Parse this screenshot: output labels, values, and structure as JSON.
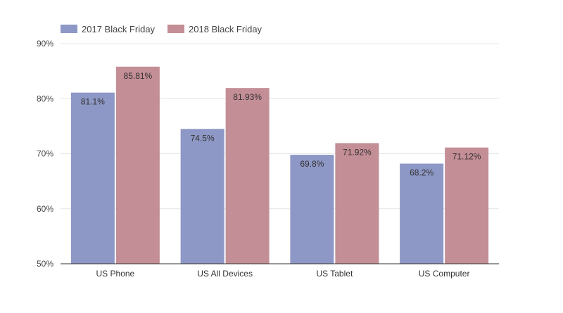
{
  "chart_data": {
    "type": "bar",
    "title": "",
    "xlabel": "",
    "ylabel": "",
    "categories": [
      "US Phone",
      "US All Devices",
      "US Tablet",
      "US Computer"
    ],
    "series": [
      {
        "name": "2017 Black Friday",
        "color": "#8e98c6",
        "values": [
          81.1,
          74.5,
          69.8,
          68.2
        ],
        "labels": [
          "81.1%",
          "74.5%",
          "69.8%",
          "68.2%"
        ]
      },
      {
        "name": "2018 Black Friday",
        "color": "#c48e96",
        "values": [
          85.81,
          81.93,
          71.92,
          71.12
        ],
        "labels": [
          "85.81%",
          "81.93%",
          "71.92%",
          "71.12%"
        ]
      }
    ],
    "ylim": [
      50,
      90
    ],
    "yticks": [
      50,
      60,
      70,
      80,
      90
    ],
    "ytick_labels": [
      "50%",
      "60%",
      "70%",
      "80%",
      "90%"
    ],
    "grid": true,
    "legend_position": "top-left"
  }
}
